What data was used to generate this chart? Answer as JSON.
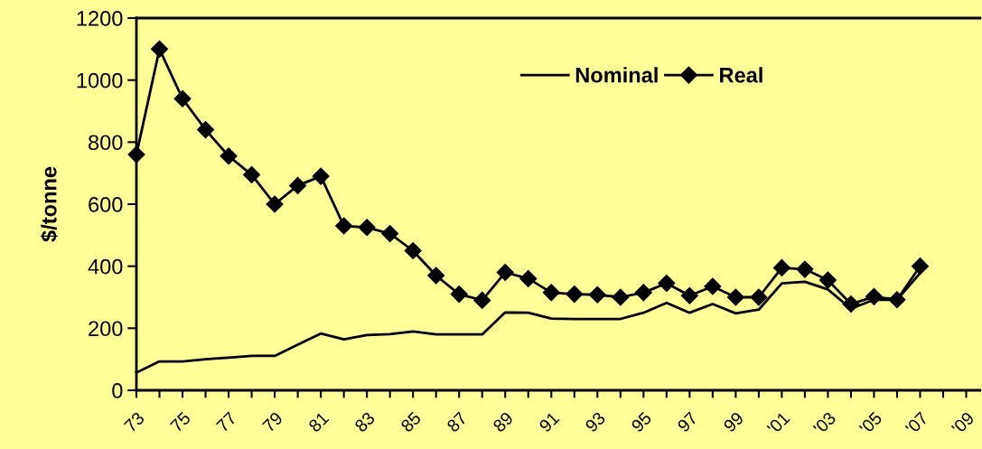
{
  "chart_data": {
    "type": "line",
    "ylabel": "$/tonne",
    "categories": [
      "73",
      null,
      "75",
      null,
      "77",
      null,
      "79",
      null,
      "81",
      null,
      "83",
      null,
      "85",
      null,
      "87",
      null,
      "89",
      null,
      "91",
      null,
      "93",
      null,
      "95",
      null,
      "97",
      null,
      "99",
      null,
      "'01",
      null,
      "'03",
      null,
      "'05",
      null,
      "'07",
      null,
      "'09"
    ],
    "series": [
      {
        "name": "Nominal",
        "color": "#000000",
        "marker": "none",
        "values": [
          57,
          93,
          93,
          100,
          105,
          111,
          111,
          147,
          183,
          164,
          178,
          181,
          190,
          180,
          180,
          180,
          251,
          250,
          231,
          230,
          230,
          230,
          250,
          282,
          250,
          278,
          248,
          260,
          345,
          350,
          325,
          263,
          292,
          292,
          378,
          null,
          null
        ]
      },
      {
        "name": "Real",
        "color": "#000000",
        "marker": "diamond",
        "values": [
          760,
          1100,
          940,
          840,
          755,
          695,
          600,
          660,
          690,
          530,
          525,
          505,
          450,
          370,
          310,
          290,
          380,
          360,
          315,
          310,
          308,
          300,
          315,
          345,
          305,
          335,
          300,
          300,
          395,
          390,
          355,
          278,
          302,
          292,
          400,
          null,
          null
        ]
      }
    ],
    "ylim": [
      0,
      1200
    ],
    "yticks": [
      0,
      200,
      400,
      600,
      800,
      1000,
      1200
    ],
    "grid": false,
    "legend": "top"
  }
}
